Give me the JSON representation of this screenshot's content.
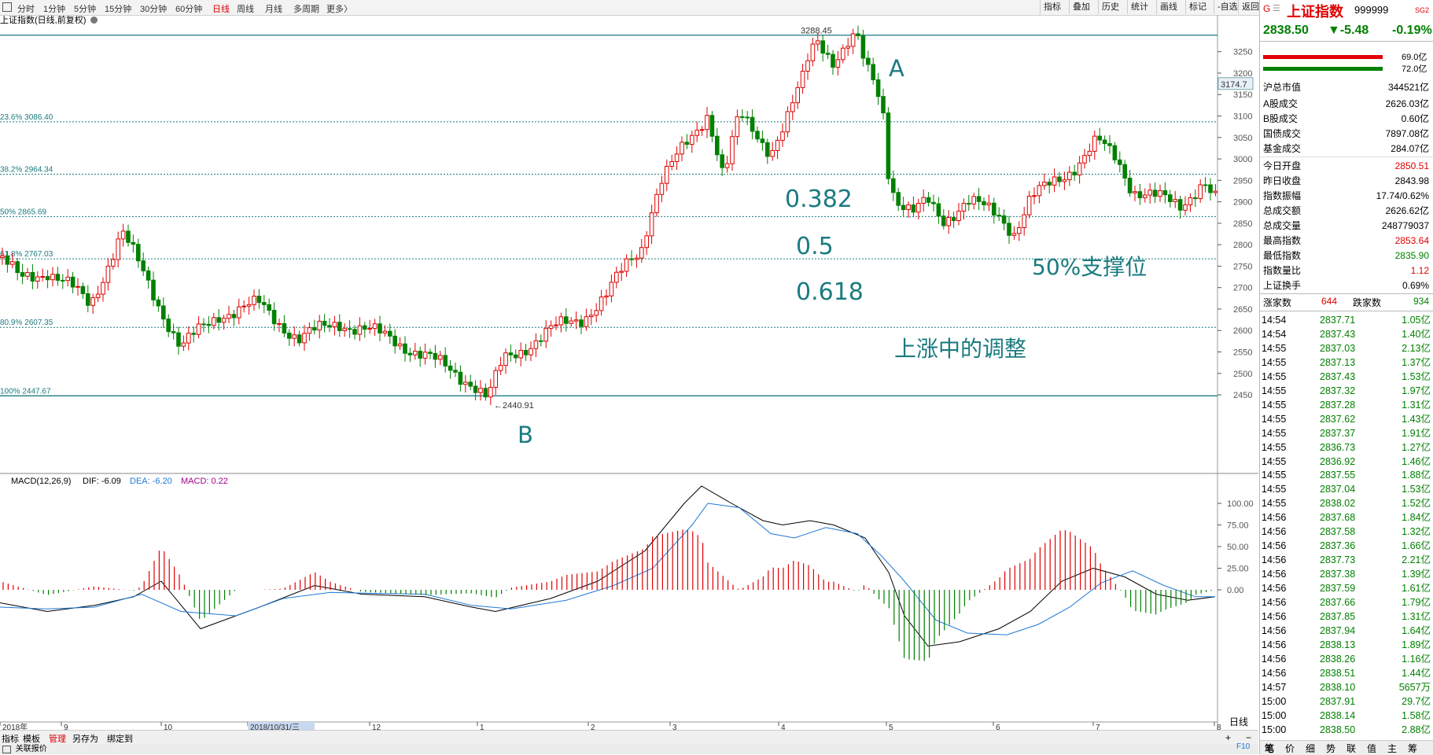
{
  "toolbar": {
    "periods": [
      "分时",
      "1分钟",
      "5分钟",
      "15分钟",
      "30分钟",
      "60分钟",
      "日线",
      "周线",
      "月线",
      "多周期",
      "更多〉"
    ],
    "active_period": "日线",
    "tools": [
      "指标",
      "叠加",
      "历史",
      "统计",
      "画线",
      "标记",
      "-自选",
      "返回"
    ]
  },
  "chart_title": "上证指数(日线,前复权)",
  "price_axis_ticks": [
    "3250",
    "3200",
    "3150",
    "3100",
    "3050",
    "3000",
    "2950",
    "2900",
    "2850",
    "2800",
    "2750",
    "2700",
    "2650",
    "2600",
    "2550",
    "2500",
    "2450"
  ],
  "current_price_box": "3174.7",
  "fib_lines": [
    {
      "label": "",
      "price": 3288.45
    },
    {
      "label": "23.6% 3086.40",
      "price": 3086.4
    },
    {
      "label": "38.2% 2964.34",
      "price": 2964.34
    },
    {
      "label": "50% 2865.69",
      "price": 2865.69
    },
    {
      "label": "61.8% 2767.03",
      "price": 2767.03
    },
    {
      "label": "80.9% 2607.35",
      "price": 2607.35
    },
    {
      "label": "100% 2447.67",
      "price": 2447.67
    }
  ],
  "high_marker": "3288.45",
  "low_marker": "2440.91",
  "annotations": {
    "a": "A",
    "b": "B",
    "fib382": "0.382",
    "fib5": "0.5",
    "fib618": "0.618",
    "support": "50%支撑位",
    "adjust": "上涨中的调整"
  },
  "macd": {
    "label": "MACD(12,26,9)",
    "dif": "DIF: -6.09",
    "dea": "DEA: -6.20",
    "macd": "MACD: 0.22",
    "ticks": [
      "100.00",
      "75.00",
      "50.00",
      "25.00",
      "0.00"
    ]
  },
  "date_axis": [
    "2018年",
    "9",
    "10",
    "2018/10/31/三",
    "12",
    "1",
    "2",
    "3",
    "4",
    "5",
    "6",
    "7",
    "8"
  ],
  "date_axis_right": "日线",
  "bottom_tabs": [
    "指标",
    "模板",
    "管理",
    "另存为",
    "绑定到"
  ],
  "status_bar": "关联报价",
  "quote": {
    "badge": "G",
    "name": "上证指数",
    "code": "999999",
    "tag": "SG2",
    "price": "2838.50",
    "change": "▼-5.48",
    "change_pct": "-0.19%",
    "bar_value_1": "69.0亿",
    "bar_value_2": "72.0亿",
    "stats": [
      {
        "k": "沪总市值",
        "v": "344521亿",
        "c": "black"
      },
      {
        "k": "A股成交",
        "v": "2626.03亿",
        "c": "black"
      },
      {
        "k": "B股成交",
        "v": "0.60亿",
        "c": "black"
      },
      {
        "k": "国债成交",
        "v": "7897.08亿",
        "c": "black"
      },
      {
        "k": "基金成交",
        "v": "284.07亿",
        "c": "black"
      },
      {
        "k": "今日开盘",
        "v": "2850.51",
        "c": "red"
      },
      {
        "k": "昨日收盘",
        "v": "2843.98",
        "c": "black"
      },
      {
        "k": "指数振幅",
        "v": "17.74/0.62%",
        "c": "black"
      },
      {
        "k": "总成交额",
        "v": "2626.62亿",
        "c": "black"
      },
      {
        "k": "总成交量",
        "v": "248779037",
        "c": "black"
      },
      {
        "k": "最高指数",
        "v": "2853.64",
        "c": "red"
      },
      {
        "k": "最低指数",
        "v": "2835.90",
        "c": "green"
      },
      {
        "k": "指数量比",
        "v": "1.12",
        "c": "red"
      },
      {
        "k": "上证换手",
        "v": "0.69%",
        "c": "black"
      }
    ],
    "up_label": "涨家数",
    "up_count": "644",
    "down_label": "跌家数",
    "down_count": "934"
  },
  "ticks": [
    [
      "14:54",
      "2837.71",
      "1.05亿"
    ],
    [
      "14:54",
      "2837.43",
      "1.40亿"
    ],
    [
      "14:55",
      "2837.03",
      "2.13亿"
    ],
    [
      "14:55",
      "2837.13",
      "1.37亿"
    ],
    [
      "14:55",
      "2837.43",
      "1.53亿"
    ],
    [
      "14:55",
      "2837.32",
      "1.97亿"
    ],
    [
      "14:55",
      "2837.28",
      "1.31亿"
    ],
    [
      "14:55",
      "2837.62",
      "1.43亿"
    ],
    [
      "14:55",
      "2837.37",
      "1.91亿"
    ],
    [
      "14:55",
      "2836.73",
      "1.27亿"
    ],
    [
      "14:55",
      "2836.92",
      "1.46亿"
    ],
    [
      "14:55",
      "2837.55",
      "1.88亿"
    ],
    [
      "14:55",
      "2837.04",
      "1.53亿"
    ],
    [
      "14:55",
      "2838.02",
      "1.52亿"
    ],
    [
      "14:56",
      "2837.68",
      "1.84亿"
    ],
    [
      "14:56",
      "2837.58",
      "1.32亿"
    ],
    [
      "14:56",
      "2837.36",
      "1.66亿"
    ],
    [
      "14:56",
      "2837.73",
      "2.21亿"
    ],
    [
      "14:56",
      "2837.38",
      "1.39亿"
    ],
    [
      "14:56",
      "2837.59",
      "1.61亿"
    ],
    [
      "14:56",
      "2837.66",
      "1.79亿"
    ],
    [
      "14:56",
      "2837.85",
      "1.31亿"
    ],
    [
      "14:56",
      "2837.94",
      "1.64亿"
    ],
    [
      "14:56",
      "2838.13",
      "1.89亿"
    ],
    [
      "14:56",
      "2838.26",
      "1.16亿"
    ],
    [
      "14:56",
      "2838.51",
      "1.44亿"
    ],
    [
      "14:57",
      "2838.10",
      "5657万"
    ],
    [
      "15:00",
      "2837.91",
      "29.7亿"
    ],
    [
      "15:00",
      "2838.14",
      "1.58亿"
    ],
    [
      "15:00",
      "2838.50",
      "2.88亿"
    ]
  ],
  "side_tabs": [
    "笔",
    "价",
    "细",
    "势",
    "联",
    "值",
    "主",
    "筹"
  ],
  "side_status": "F10",
  "colors": {
    "up": "#e00000",
    "down": "#008000",
    "fib": "#1a7b80",
    "dif": "#000000",
    "dea": "#1e78d8",
    "ann": "#1a7b80"
  }
}
